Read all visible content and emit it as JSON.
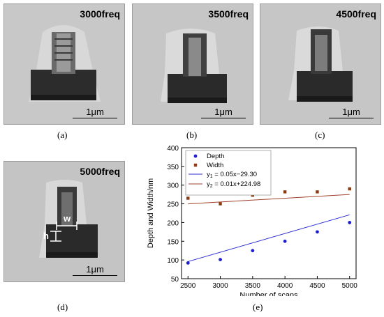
{
  "panels": [
    {
      "title": "3000freq",
      "scale": "1μm",
      "caption": "(a)"
    },
    {
      "title": "3500freq",
      "scale": "1μm",
      "caption": "(b)"
    },
    {
      "title": "4500freq",
      "scale": "1μm",
      "caption": "(c)"
    },
    {
      "title": "5000freq",
      "scale": "1μm",
      "caption": "(d)",
      "labels": {
        "w": "w",
        "h": "h"
      }
    }
  ],
  "chart_caption": "(e)",
  "chart_data": {
    "type": "scatter",
    "xlabel": "Number of scans",
    "ylabel": "Depth and Width/nm",
    "xlim": [
      2400,
      5100
    ],
    "ylim": [
      50,
      400
    ],
    "xticks": [
      2500,
      3000,
      3500,
      4000,
      4500,
      5000
    ],
    "yticks": [
      50,
      100,
      150,
      200,
      250,
      300,
      350,
      400
    ],
    "legend_position": "top-left",
    "grid": false,
    "series": [
      {
        "name": "Depth",
        "marker": "circle",
        "color": "#1f1fd0",
        "x": [
          2500,
          3000,
          3500,
          4000,
          4500,
          5000
        ],
        "y": [
          92,
          101,
          125,
          150,
          175,
          200
        ]
      },
      {
        "name": "Width",
        "marker": "square",
        "color": "#8b3a14",
        "x": [
          2500,
          3000,
          3500,
          4000,
          4500,
          5000
        ],
        "y": [
          265,
          250,
          273,
          282,
          282,
          290
        ]
      }
    ],
    "fits": [
      {
        "label": "y",
        "sub": "1",
        "eq": " = 0.05x−29.30",
        "slope": 0.05,
        "intercept": -29.3,
        "color": "#2a2ad8"
      },
      {
        "label": "y",
        "sub": "2",
        "eq": " = 0.01x+224.98",
        "slope": 0.01,
        "intercept": 224.98,
        "color": "#a0402a"
      }
    ]
  }
}
